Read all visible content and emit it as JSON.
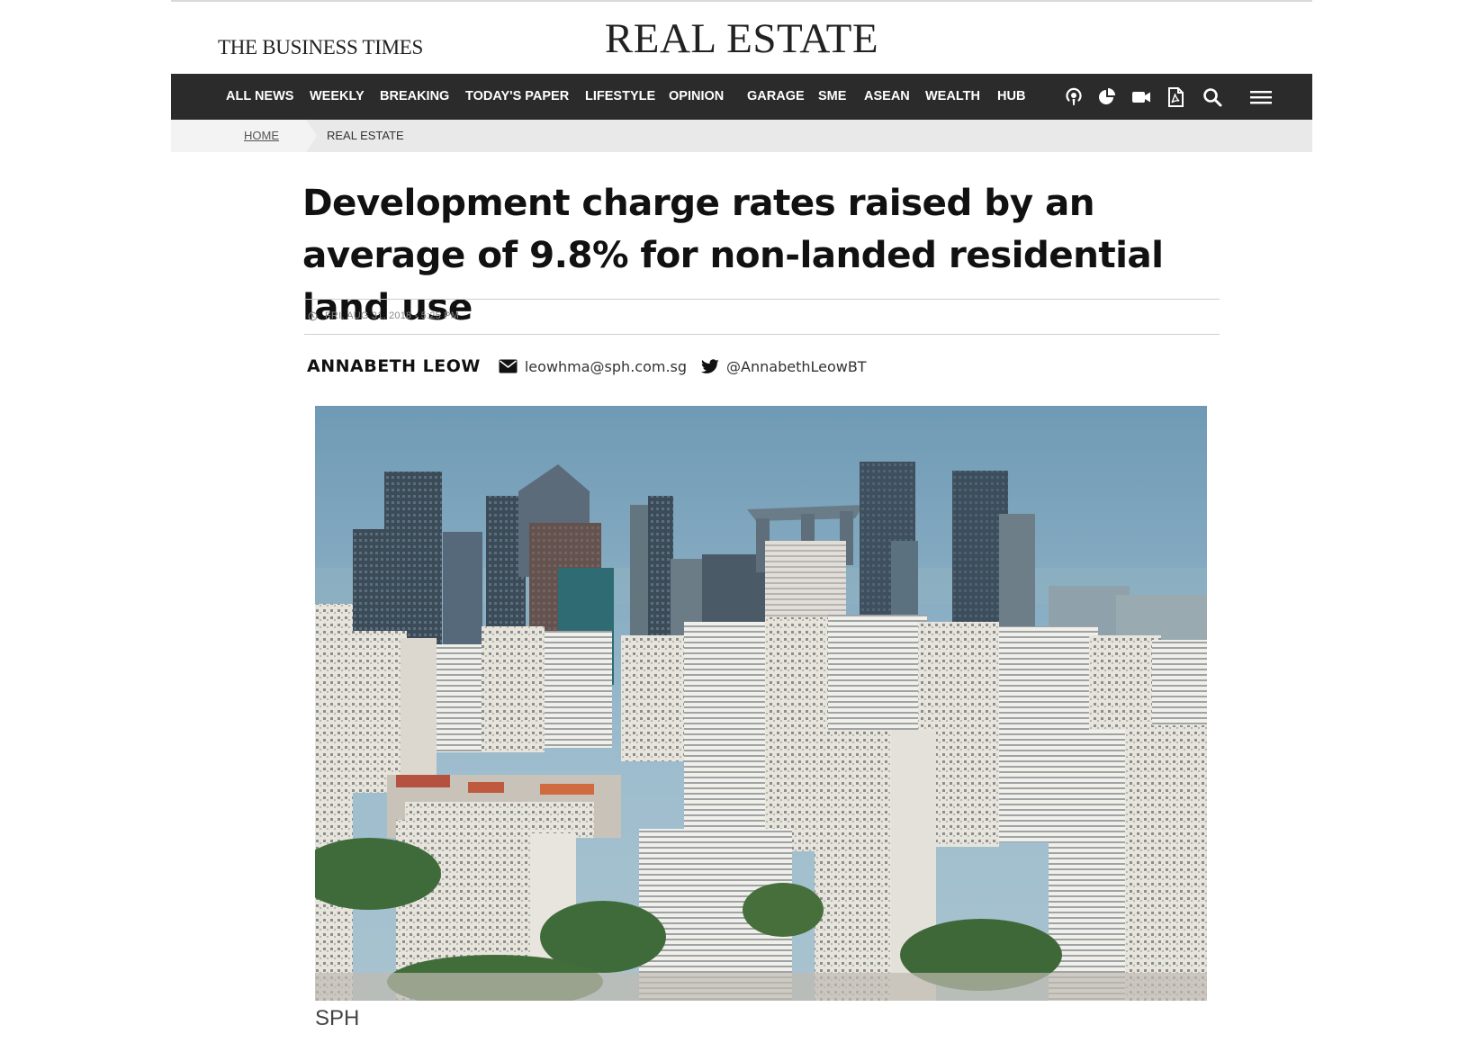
{
  "masthead": {
    "logo_text": "THE BUSINESS TIMES",
    "section_title": "REAL ESTATE"
  },
  "nav": {
    "items": [
      "ALL NEWS",
      "WEEKLY",
      "BREAKING",
      "TODAY'S PAPER",
      "LIFESTYLE",
      "OPINION",
      "GARAGE",
      "SME",
      "ASEAN",
      "WEALTH",
      "HUB"
    ],
    "icons": [
      "podcast-icon",
      "chart-pie-icon",
      "video-icon",
      "pdf-icon",
      "search-icon",
      "menu-icon"
    ]
  },
  "breadcrumb": {
    "home": "HOME",
    "current": "REAL ESTATE"
  },
  "article": {
    "headline": "Development charge rates raised by an average of 9.8% for non-landed residential land use",
    "date": "FRI, AUG 31, 2018 - 5:25 PM",
    "author": "ANNABETH LEOW",
    "email": "leowhma@sph.com.sg",
    "twitter": "@AnnabethLeowBT",
    "image_caption": "SPH"
  },
  "colors": {
    "navbar_bg": "#2b2b2b",
    "breadcrumb_bg": "#e9e9e9",
    "text": "#111111"
  }
}
